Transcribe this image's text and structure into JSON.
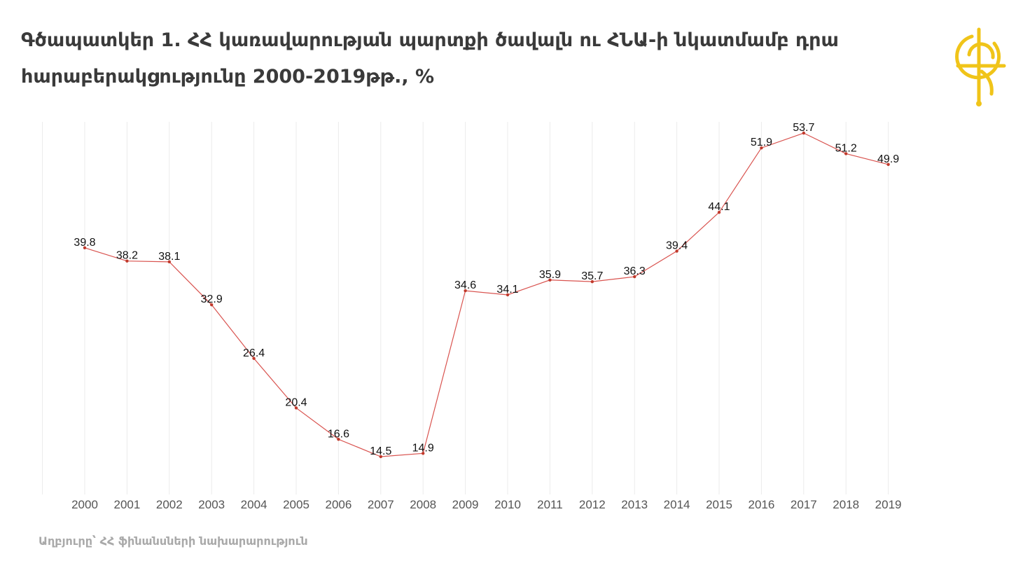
{
  "title": "Գծապատկեր 1. ՀՀ կառավարության պարտքի ծավալն ու ՀՆԱ-ի նկատմամբ դրա հարաբերակցությունը 2000-2019թթ., %",
  "source": "Աղբյուրը՝ ՀՀ ֆինանսների նախարարություն",
  "logo_icon": "yellow-globe-logo-icon",
  "colors": {
    "line": "#d9534f",
    "point": "#c0392b",
    "grid": "#ebebeb",
    "logo": "#f0c419"
  },
  "chart_data": {
    "type": "line",
    "categories": [
      "2000",
      "2001",
      "2002",
      "2003",
      "2004",
      "2005",
      "2006",
      "2007",
      "2008",
      "2009",
      "2010",
      "2011",
      "2012",
      "2013",
      "2014",
      "2015",
      "2016",
      "2017",
      "2018",
      "2019"
    ],
    "values": [
      39.8,
      38.2,
      38.1,
      32.9,
      26.4,
      20.4,
      16.6,
      14.5,
      14.9,
      34.6,
      34.1,
      35.9,
      35.7,
      36.3,
      39.4,
      44.1,
      51.9,
      53.7,
      51.2,
      49.9
    ],
    "labels": [
      "39.8",
      "38.2",
      "38.1",
      "32.9",
      "26.4",
      "20.4",
      "16.6",
      "14.5",
      "14.9",
      "34.6",
      "34.1",
      "35.9",
      "35.7",
      "36.3",
      "39.4",
      "44.1",
      "51.9",
      "53.7",
      "51.2",
      "49.9"
    ],
    "ylim": [
      0,
      58
    ],
    "grid": "vertical",
    "legend": "none",
    "xlabel": "",
    "ylabel": ""
  }
}
